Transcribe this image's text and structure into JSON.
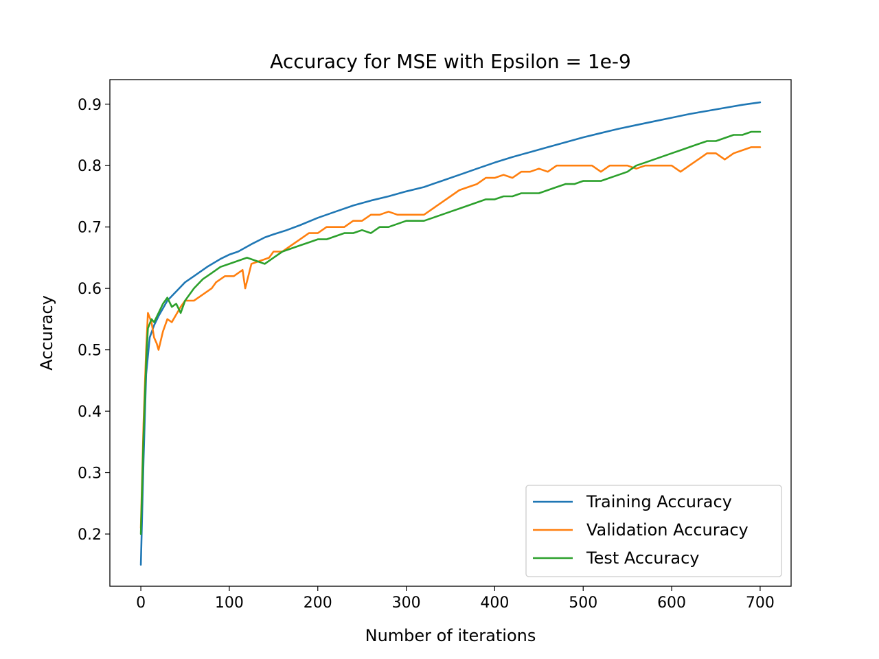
{
  "chart_data": {
    "type": "line",
    "title": "Accuracy for MSE with Epsilon = 1e-9",
    "xlabel": "Number of iterations",
    "ylabel": "Accuracy",
    "xlim": [
      -35,
      735
    ],
    "ylim": [
      0.115,
      0.94
    ],
    "xticks": [
      0,
      100,
      200,
      300,
      400,
      500,
      600,
      700
    ],
    "xtick_labels": [
      "0",
      "100",
      "200",
      "300",
      "400",
      "500",
      "600",
      "700"
    ],
    "yticks": [
      0.2,
      0.3,
      0.4,
      0.5,
      0.6,
      0.7,
      0.8,
      0.9
    ],
    "ytick_labels": [
      "0.2",
      "0.3",
      "0.4",
      "0.5",
      "0.6",
      "0.7",
      "0.8",
      "0.9"
    ],
    "grid": false,
    "legend_position": "bottom-right",
    "series": [
      {
        "name": "Training Accuracy",
        "color": "#1f77b4",
        "x": [
          0,
          3,
          6,
          10,
          15,
          20,
          30,
          40,
          50,
          60,
          75,
          90,
          100,
          110,
          125,
          140,
          150,
          165,
          180,
          200,
          220,
          240,
          260,
          280,
          300,
          320,
          340,
          360,
          380,
          400,
          420,
          440,
          460,
          480,
          500,
          520,
          540,
          560,
          580,
          600,
          620,
          640,
          660,
          680,
          700
        ],
        "y": [
          0.15,
          0.32,
          0.46,
          0.52,
          0.54,
          0.555,
          0.58,
          0.595,
          0.61,
          0.62,
          0.635,
          0.648,
          0.655,
          0.66,
          0.672,
          0.683,
          0.688,
          0.695,
          0.703,
          0.715,
          0.725,
          0.735,
          0.743,
          0.75,
          0.758,
          0.765,
          0.775,
          0.785,
          0.795,
          0.805,
          0.814,
          0.822,
          0.83,
          0.838,
          0.846,
          0.853,
          0.86,
          0.866,
          0.872,
          0.878,
          0.884,
          0.889,
          0.894,
          0.899,
          0.903
        ]
      },
      {
        "name": "Validation Accuracy",
        "color": "#ff7f0e",
        "x": [
          0,
          3,
          6,
          8,
          12,
          15,
          18,
          20,
          25,
          30,
          35,
          45,
          50,
          60,
          70,
          80,
          85,
          95,
          105,
          115,
          118,
          125,
          135,
          145,
          150,
          160,
          170,
          180,
          190,
          200,
          210,
          220,
          230,
          240,
          250,
          260,
          270,
          280,
          290,
          300,
          310,
          320,
          330,
          340,
          350,
          360,
          370,
          380,
          390,
          400,
          410,
          420,
          430,
          440,
          450,
          460,
          470,
          480,
          490,
          500,
          510,
          520,
          530,
          540,
          550,
          560,
          570,
          580,
          590,
          600,
          610,
          620,
          630,
          640,
          650,
          660,
          670,
          680,
          690,
          700
        ],
        "y": [
          0.21,
          0.38,
          0.5,
          0.56,
          0.545,
          0.52,
          0.51,
          0.5,
          0.53,
          0.55,
          0.545,
          0.57,
          0.58,
          0.58,
          0.59,
          0.6,
          0.61,
          0.62,
          0.62,
          0.63,
          0.6,
          0.64,
          0.645,
          0.65,
          0.66,
          0.66,
          0.67,
          0.68,
          0.69,
          0.69,
          0.7,
          0.7,
          0.7,
          0.71,
          0.71,
          0.72,
          0.72,
          0.725,
          0.72,
          0.72,
          0.72,
          0.72,
          0.73,
          0.74,
          0.75,
          0.76,
          0.765,
          0.77,
          0.78,
          0.78,
          0.785,
          0.78,
          0.79,
          0.79,
          0.795,
          0.79,
          0.8,
          0.8,
          0.8,
          0.8,
          0.8,
          0.79,
          0.8,
          0.8,
          0.8,
          0.795,
          0.8,
          0.8,
          0.8,
          0.8,
          0.79,
          0.8,
          0.81,
          0.82,
          0.82,
          0.81,
          0.82,
          0.825,
          0.83,
          0.83
        ]
      },
      {
        "name": "Test Accuracy",
        "color": "#2ca02c",
        "x": [
          0,
          3,
          6,
          8,
          12,
          15,
          20,
          25,
          30,
          35,
          40,
          45,
          50,
          60,
          70,
          80,
          90,
          100,
          110,
          120,
          130,
          140,
          150,
          160,
          170,
          180,
          190,
          200,
          210,
          220,
          230,
          240,
          250,
          260,
          270,
          280,
          290,
          300,
          310,
          320,
          330,
          340,
          350,
          360,
          370,
          380,
          390,
          400,
          410,
          420,
          430,
          440,
          450,
          460,
          470,
          480,
          490,
          500,
          510,
          520,
          530,
          540,
          550,
          560,
          570,
          580,
          590,
          600,
          610,
          620,
          630,
          640,
          650,
          660,
          670,
          680,
          690,
          700
        ],
        "y": [
          0.2,
          0.36,
          0.48,
          0.535,
          0.55,
          0.545,
          0.56,
          0.575,
          0.585,
          0.57,
          0.575,
          0.56,
          0.58,
          0.6,
          0.615,
          0.625,
          0.635,
          0.64,
          0.645,
          0.65,
          0.645,
          0.64,
          0.65,
          0.66,
          0.665,
          0.67,
          0.675,
          0.68,
          0.68,
          0.685,
          0.69,
          0.69,
          0.695,
          0.69,
          0.7,
          0.7,
          0.705,
          0.71,
          0.71,
          0.71,
          0.715,
          0.72,
          0.725,
          0.73,
          0.735,
          0.74,
          0.745,
          0.745,
          0.75,
          0.75,
          0.755,
          0.755,
          0.755,
          0.76,
          0.765,
          0.77,
          0.77,
          0.775,
          0.775,
          0.775,
          0.78,
          0.785,
          0.79,
          0.8,
          0.805,
          0.81,
          0.815,
          0.82,
          0.825,
          0.83,
          0.835,
          0.84,
          0.84,
          0.845,
          0.85,
          0.85,
          0.855,
          0.855
        ]
      }
    ]
  }
}
